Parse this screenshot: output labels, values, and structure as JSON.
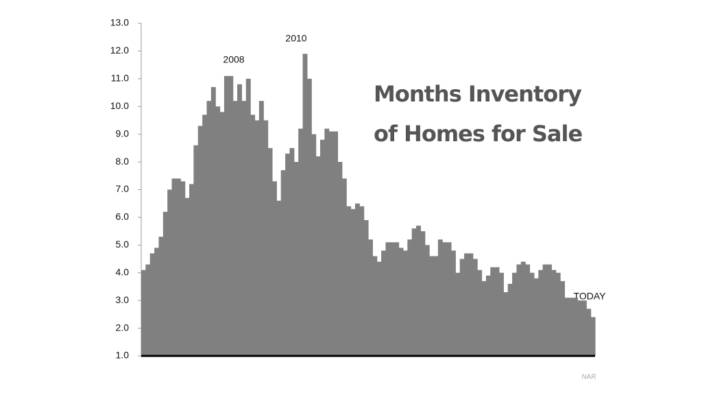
{
  "chart_data": {
    "type": "bar",
    "title": "Months Inventory of Homes for Sale",
    "source": "NAR",
    "annotations": [
      "2008",
      "2010",
      "TODAY"
    ],
    "color": "#808080",
    "categories": [
      null,
      null,
      null,
      null,
      null,
      null,
      null,
      null,
      null,
      null,
      null,
      null,
      null,
      null,
      null,
      null,
      null,
      null,
      null,
      null,
      null,
      null,
      null,
      null,
      null,
      null,
      null,
      null,
      null,
      null,
      null,
      null,
      null,
      null,
      null,
      null,
      null,
      null,
      null,
      null,
      null,
      null,
      null,
      null,
      null,
      null,
      null,
      null,
      null,
      null,
      null,
      null,
      null,
      null,
      null,
      null,
      null,
      null,
      null,
      null,
      null,
      null,
      null,
      null,
      null,
      null,
      null,
      null,
      null,
      null,
      null,
      null,
      null,
      null,
      null,
      null,
      null,
      null,
      null,
      null,
      null,
      null,
      null,
      null,
      null,
      null,
      null,
      null,
      null,
      null,
      null,
      null,
      null,
      null,
      null,
      null,
      null,
      null,
      null,
      null,
      null,
      null,
      null,
      null
    ],
    "values": [
      4.1,
      4.3,
      4.7,
      4.9,
      5.3,
      6.2,
      7.0,
      7.4,
      7.4,
      7.3,
      6.7,
      7.2,
      8.6,
      9.3,
      9.7,
      10.2,
      10.7,
      10.0,
      9.8,
      11.1,
      11.1,
      10.2,
      10.8,
      10.2,
      11.0,
      9.7,
      9.5,
      10.2,
      9.5,
      8.5,
      7.3,
      6.6,
      7.7,
      8.3,
      8.5,
      8.0,
      9.2,
      11.9,
      11.0,
      9.0,
      8.2,
      8.8,
      9.2,
      9.1,
      9.1,
      8.0,
      7.4,
      6.4,
      6.3,
      6.5,
      6.4,
      5.9,
      5.2,
      4.6,
      4.4,
      4.8,
      5.1,
      5.1,
      5.1,
      4.9,
      4.8,
      5.2,
      5.6,
      5.7,
      5.5,
      5.0,
      4.6,
      4.6,
      5.2,
      5.1,
      5.1,
      4.8,
      4.0,
      4.5,
      4.7,
      4.7,
      4.5,
      4.1,
      3.7,
      3.9,
      4.2,
      4.2,
      4.0,
      3.3,
      3.6,
      4.0,
      4.3,
      4.4,
      4.3,
      4.0,
      3.8,
      4.1,
      4.3,
      4.3,
      4.1,
      4.0,
      3.7,
      3.1,
      3.1,
      3.1,
      3.0,
      3.0,
      2.7,
      2.4
    ],
    "ylim": [
      1,
      13
    ],
    "yticks": [
      {
        "value": 1,
        "label": "1.0"
      },
      {
        "value": 2,
        "label": "2.0"
      },
      {
        "value": 3,
        "label": "3.0"
      },
      {
        "value": 4,
        "label": "4.0"
      },
      {
        "value": 5,
        "label": "5.0"
      },
      {
        "value": 6,
        "label": "6.0"
      },
      {
        "value": 7,
        "label": "7.0"
      },
      {
        "value": 8,
        "label": "8.0"
      },
      {
        "value": 9,
        "label": "9.0"
      },
      {
        "value": 10,
        "label": "10.0"
      },
      {
        "value": 11,
        "label": "11.0"
      },
      {
        "value": 12,
        "label": "12.0"
      },
      {
        "value": 13,
        "label": "13.0"
      }
    ],
    "grid": false
  }
}
